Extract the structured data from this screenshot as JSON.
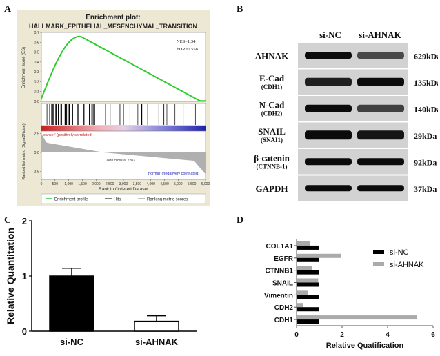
{
  "panels": {
    "a": "A",
    "b": "B",
    "c": "C",
    "d": "D"
  },
  "gsea": {
    "title_line1": "Enrichment plot:",
    "title_line2": "HALLMARK_EPITHELIAL_MESENCHYMAL_TRANSITION",
    "nes": "NES=1.34",
    "fdr": "FDR=0.558",
    "es_ylabel": "Enrichment score (ES)",
    "es_ticks": [
      "0.7",
      "0.6",
      "0.5",
      "0.4",
      "0.3",
      "0.2",
      "0.1",
      "0.0"
    ],
    "es_ylim": [
      0,
      0.7
    ],
    "rank_ylabel": "Ranked list metric (Signal2Noise)",
    "rank_ticks": [
      "2.5",
      "0.0",
      "-2.5"
    ],
    "xlabel": "Rank in Ordered Dataset",
    "x_ticks": [
      "0",
      "500",
      "1,000",
      "1,500",
      "2,000",
      "2,500",
      "3,000",
      "3,500",
      "4,000",
      "4,500",
      "5,000",
      "5,500",
      "6,000"
    ],
    "x_max": 6000,
    "peak_rank": 1400,
    "peak_es": 0.66,
    "label_cancer": "'cancer' (positively correlated)",
    "label_normal": "'normal' (negatively correlated)",
    "zero_cross": "Zero cross at 2283",
    "legend": [
      "Enrichment profile",
      "Hits",
      "Ranking metric scores"
    ],
    "colors": {
      "profile": "#2ecc2e",
      "hits": "#000000",
      "metric": "#aaaaaa"
    }
  },
  "western": {
    "groups": [
      "si-NC",
      "si-AHNAK"
    ],
    "bands": [
      {
        "name": "AHNAK",
        "sub": "",
        "size": "629kDa"
      },
      {
        "name": "E-Cad",
        "sub": "(CDH1)",
        "size": "135kDa"
      },
      {
        "name": "N-Cad",
        "sub": "(CDH2)",
        "size": "140kDa"
      },
      {
        "name": "SNAIL",
        "sub": "(SNAI1)",
        "size": "29kDa"
      },
      {
        "name": "β-catenin",
        "sub": "(CTNNB-1)",
        "size": "92kDa"
      },
      {
        "name": "GAPDH",
        "sub": "",
        "size": "37kDa"
      }
    ]
  },
  "chart_data": [
    {
      "type": "bar",
      "panel": "C",
      "categories": [
        "si-NC",
        "si-AHNAK"
      ],
      "values": [
        1.0,
        0.18
      ],
      "errors": [
        0.14,
        0.1
      ],
      "ylabel": "Relative Quantitation",
      "ylim": [
        0,
        2
      ],
      "yticks": [
        "0",
        "1",
        "2"
      ],
      "colors": [
        "#000000",
        "#ffffff"
      ]
    },
    {
      "type": "bar",
      "panel": "D",
      "orientation": "horizontal",
      "categories": [
        "COL1A1",
        "EGFR",
        "CTNNB1",
        "SNAIL",
        "Vimentin",
        "CDH2",
        "CDH1"
      ],
      "series": [
        {
          "name": "si-NC",
          "values": [
            1.0,
            1.0,
            1.0,
            1.0,
            1.0,
            1.0,
            1.0
          ],
          "color": "#000000"
        },
        {
          "name": "si-AHNAK",
          "values": [
            0.6,
            1.95,
            0.68,
            0.95,
            0.5,
            0.28,
            5.3
          ],
          "color": "#aaaaaa"
        }
      ],
      "xlabel": "Relative Quatification",
      "xlim": [
        0,
        6
      ],
      "xticks": [
        "0",
        "2",
        "4",
        "6"
      ],
      "legend_position": "right"
    }
  ]
}
